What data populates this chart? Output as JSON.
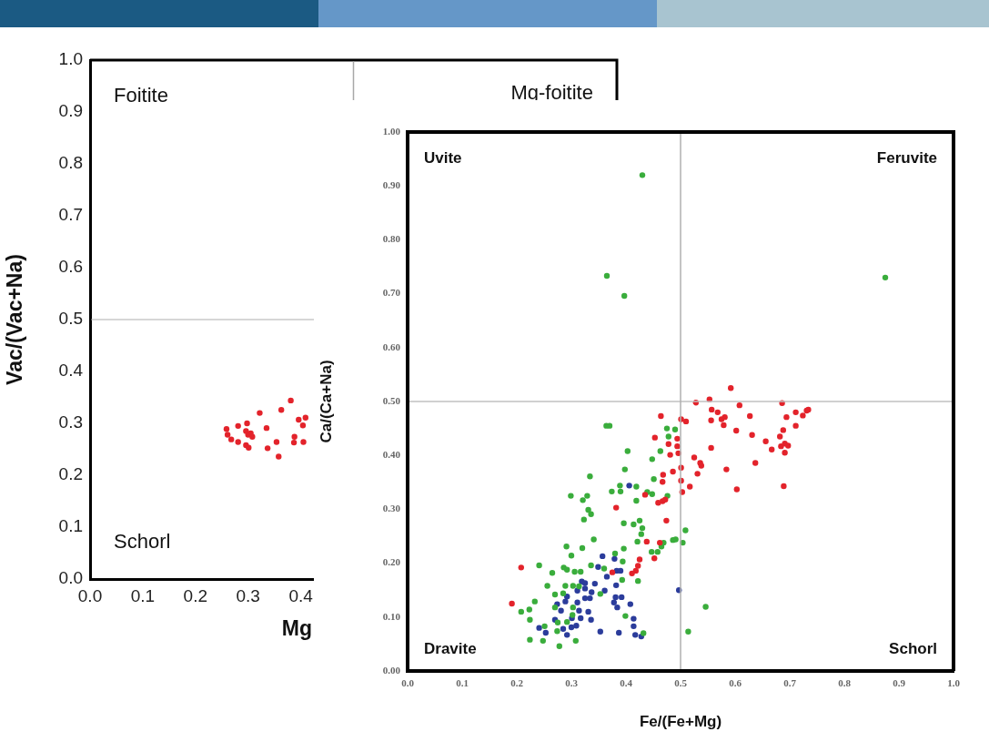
{
  "chart_data": [
    {
      "type": "scatter",
      "xlabel": "Mg",
      "ylabel": "Vac/(Vac+Na)",
      "xlim": [
        0,
        1
      ],
      "ylim": [
        0,
        1
      ],
      "xticks": [
        {
          "value": 0,
          "label": "0.0"
        },
        {
          "value": 0.1,
          "label": "0.1"
        },
        {
          "value": 0.2,
          "label": "0.2"
        },
        {
          "value": 0.3,
          "label": "0.3"
        },
        {
          "value": 0.4,
          "label": "0.4"
        }
      ],
      "yticks": [
        {
          "value": 0,
          "label": "0.0"
        },
        {
          "value": 0.1,
          "label": "0.1"
        },
        {
          "value": 0.2,
          "label": "0.2"
        },
        {
          "value": 0.3,
          "label": "0.3"
        },
        {
          "value": 0.4,
          "label": "0.4"
        },
        {
          "value": 0.5,
          "label": "0.5"
        },
        {
          "value": 0.6,
          "label": "0.6"
        },
        {
          "value": 0.7,
          "label": "0.7"
        },
        {
          "value": 0.8,
          "label": "0.8"
        },
        {
          "value": 0.9,
          "label": "0.9"
        },
        {
          "value": 1,
          "label": "1.0"
        }
      ],
      "grid": false,
      "legend": false,
      "marker": "circle",
      "ref_lines": [
        {
          "axis": "y",
          "value": 0.5,
          "color": "#c8c8c8"
        },
        {
          "axis": "x",
          "value": 0.5,
          "color": "#a8a8a8"
        }
      ],
      "annotations": [
        "Foitite",
        "Mg-foitite",
        "Schorl"
      ],
      "series": [
        {
          "color": "#e3232b",
          "x": [
            0.259,
            0.261,
            0.268,
            0.281,
            0.281,
            0.298,
            0.296,
            0.3,
            0.305,
            0.308,
            0.296,
            0.301,
            0.322,
            0.335,
            0.337,
            0.354,
            0.363,
            0.358,
            0.381,
            0.388,
            0.387,
            0.396,
            0.404,
            0.409,
            0.405
          ],
          "values": [
            0.289,
            0.278,
            0.269,
            0.295,
            0.264,
            0.3,
            0.285,
            0.278,
            0.281,
            0.274,
            0.258,
            0.253,
            0.32,
            0.291,
            0.252,
            0.264,
            0.326,
            0.236,
            0.344,
            0.274,
            0.263,
            0.307,
            0.296,
            0.311,
            0.264
          ]
        }
      ]
    },
    {
      "type": "scatter",
      "xlabel": "Fe/(Fe+Mg)",
      "ylabel": "Ca/(Ca+Na)",
      "xlim": [
        0,
        1
      ],
      "ylim": [
        0,
        1
      ],
      "xticks": [
        {
          "value": 0,
          "label": "0.0"
        },
        {
          "value": 0.1,
          "label": "0.1"
        },
        {
          "value": 0.2,
          "label": "0.2"
        },
        {
          "value": 0.3,
          "label": "0.3"
        },
        {
          "value": 0.4,
          "label": "0.4"
        },
        {
          "value": 0.5,
          "label": "0.5"
        },
        {
          "value": 0.6,
          "label": "0.6"
        },
        {
          "value": 0.7,
          "label": "0.7"
        },
        {
          "value": 0.8,
          "label": "0.8"
        },
        {
          "value": 0.9,
          "label": "0.9"
        },
        {
          "value": 1,
          "label": "1.0"
        }
      ],
      "yticks": [
        {
          "value": 0,
          "label": "0.00"
        },
        {
          "value": 0.1,
          "label": "0.10"
        },
        {
          "value": 0.2,
          "label": "0.20"
        },
        {
          "value": 0.3,
          "label": "0.30"
        },
        {
          "value": 0.4,
          "label": "0.40"
        },
        {
          "value": 0.5,
          "label": "0.50"
        },
        {
          "value": 0.6,
          "label": "0.60"
        },
        {
          "value": 0.7,
          "label": "0.70"
        },
        {
          "value": 0.8,
          "label": "0.80"
        },
        {
          "value": 0.9,
          "label": "0.90"
        },
        {
          "value": 1,
          "label": "1.00"
        }
      ],
      "grid": false,
      "legend": false,
      "marker": "circle",
      "ref_lines": [
        {
          "axis": "y",
          "value": 0.5,
          "color": "#c0c0c0"
        },
        {
          "axis": "x",
          "value": 0.5,
          "color": "#b0b0b0"
        }
      ],
      "annotations": [
        "Uvite",
        "Feruvite",
        "Dravite",
        "Schorl"
      ],
      "series": [
        {
          "color": "#e3232b",
          "x": [
            0.464,
            0.453,
            0.478,
            0.494,
            0.494,
            0.481,
            0.496,
            0.486,
            0.501,
            0.468,
            0.467,
            0.501,
            0.435,
            0.459,
            0.467,
            0.472,
            0.382,
            0.474,
            0.438,
            0.462,
            0.452,
            0.425,
            0.422,
            0.418,
            0.411,
            0.375,
            0.208,
            0.191,
            0.592,
            0.553,
            0.528,
            0.608,
            0.686,
            0.501,
            0.51,
            0.557,
            0.568,
            0.575,
            0.581,
            0.556,
            0.579,
            0.627,
            0.602,
            0.694,
            0.711,
            0.724,
            0.731,
            0.734,
            0.711,
            0.688,
            0.682,
            0.631,
            0.656,
            0.667,
            0.684,
            0.691,
            0.697,
            0.691,
            0.556,
            0.525,
            0.536,
            0.538,
            0.637,
            0.531,
            0.584,
            0.517,
            0.503,
            0.603,
            0.689
          ],
          "values": [
            0.473,
            0.433,
            0.421,
            0.431,
            0.417,
            0.401,
            0.404,
            0.37,
            0.377,
            0.364,
            0.351,
            0.353,
            0.327,
            0.312,
            0.315,
            0.318,
            0.303,
            0.279,
            0.24,
            0.238,
            0.209,
            0.207,
            0.195,
            0.186,
            0.181,
            0.183,
            0.192,
            0.125,
            0.525,
            0.504,
            0.498,
            0.493,
            0.497,
            0.467,
            0.463,
            0.485,
            0.48,
            0.467,
            0.471,
            0.465,
            0.456,
            0.473,
            0.446,
            0.471,
            0.48,
            0.474,
            0.483,
            0.485,
            0.455,
            0.447,
            0.435,
            0.438,
            0.426,
            0.411,
            0.417,
            0.422,
            0.418,
            0.405,
            0.414,
            0.396,
            0.386,
            0.381,
            0.386,
            0.366,
            0.374,
            0.342,
            0.332,
            0.337,
            0.343
          ]
        },
        {
          "color": "#3aad3c",
          "x": [
            0.43,
            0.365,
            0.397,
            0.875,
            0.364,
            0.37,
            0.403,
            0.475,
            0.49,
            0.478,
            0.463,
            0.448,
            0.398,
            0.451,
            0.389,
            0.374,
            0.39,
            0.419,
            0.419,
            0.448,
            0.476,
            0.439,
            0.334,
            0.299,
            0.321,
            0.329,
            0.331,
            0.336,
            0.323,
            0.396,
            0.414,
            0.425,
            0.43,
            0.428,
            0.509,
            0.341,
            0.421,
            0.447,
            0.458,
            0.465,
            0.469,
            0.486,
            0.491,
            0.504,
            0.291,
            0.32,
            0.396,
            0.3,
            0.38,
            0.394,
            0.241,
            0.286,
            0.292,
            0.306,
            0.317,
            0.336,
            0.265,
            0.36,
            0.393,
            0.422,
            0.256,
            0.289,
            0.303,
            0.314,
            0.27,
            0.285,
            0.353,
            0.233,
            0.27,
            0.303,
            0.302,
            0.292,
            0.275,
            0.208,
            0.224,
            0.223,
            0.251,
            0.274,
            0.224,
            0.248,
            0.278,
            0.308,
            0.399,
            0.432,
            0.514,
            0.546
          ],
          "values": [
            0.92,
            0.733,
            0.696,
            0.73,
            0.455,
            0.455,
            0.408,
            0.45,
            0.448,
            0.435,
            0.408,
            0.393,
            0.374,
            0.356,
            0.344,
            0.333,
            0.333,
            0.342,
            0.316,
            0.328,
            0.325,
            0.332,
            0.361,
            0.325,
            0.317,
            0.325,
            0.299,
            0.291,
            0.281,
            0.274,
            0.272,
            0.279,
            0.265,
            0.254,
            0.261,
            0.244,
            0.24,
            0.221,
            0.221,
            0.231,
            0.238,
            0.243,
            0.244,
            0.238,
            0.231,
            0.228,
            0.227,
            0.214,
            0.218,
            0.203,
            0.196,
            0.192,
            0.188,
            0.184,
            0.184,
            0.196,
            0.182,
            0.19,
            0.169,
            0.167,
            0.158,
            0.158,
            0.158,
            0.157,
            0.142,
            0.144,
            0.143,
            0.129,
            0.118,
            0.118,
            0.104,
            0.091,
            0.09,
            0.11,
            0.095,
            0.114,
            0.083,
            0.074,
            0.058,
            0.056,
            0.046,
            0.056,
            0.102,
            0.07,
            0.073,
            0.119
          ]
        },
        {
          "color": "#2b3c9b",
          "x": [
            0.406,
            0.357,
            0.379,
            0.349,
            0.383,
            0.39,
            0.365,
            0.343,
            0.319,
            0.325,
            0.325,
            0.311,
            0.337,
            0.334,
            0.325,
            0.292,
            0.289,
            0.311,
            0.361,
            0.382,
            0.381,
            0.392,
            0.378,
            0.384,
            0.408,
            0.274,
            0.281,
            0.314,
            0.331,
            0.317,
            0.336,
            0.27,
            0.301,
            0.309,
            0.3,
            0.285,
            0.292,
            0.253,
            0.241,
            0.353,
            0.387,
            0.414,
            0.414,
            0.417,
            0.428,
            0.497
          ],
          "values": [
            0.344,
            0.213,
            0.208,
            0.193,
            0.186,
            0.186,
            0.175,
            0.162,
            0.166,
            0.163,
            0.153,
            0.149,
            0.146,
            0.135,
            0.135,
            0.138,
            0.129,
            0.127,
            0.149,
            0.159,
            0.137,
            0.137,
            0.127,
            0.118,
            0.124,
            0.124,
            0.112,
            0.112,
            0.11,
            0.098,
            0.095,
            0.095,
            0.098,
            0.084,
            0.081,
            0.078,
            0.067,
            0.071,
            0.08,
            0.073,
            0.071,
            0.097,
            0.083,
            0.067,
            0.064,
            0.15
          ]
        }
      ]
    }
  ]
}
